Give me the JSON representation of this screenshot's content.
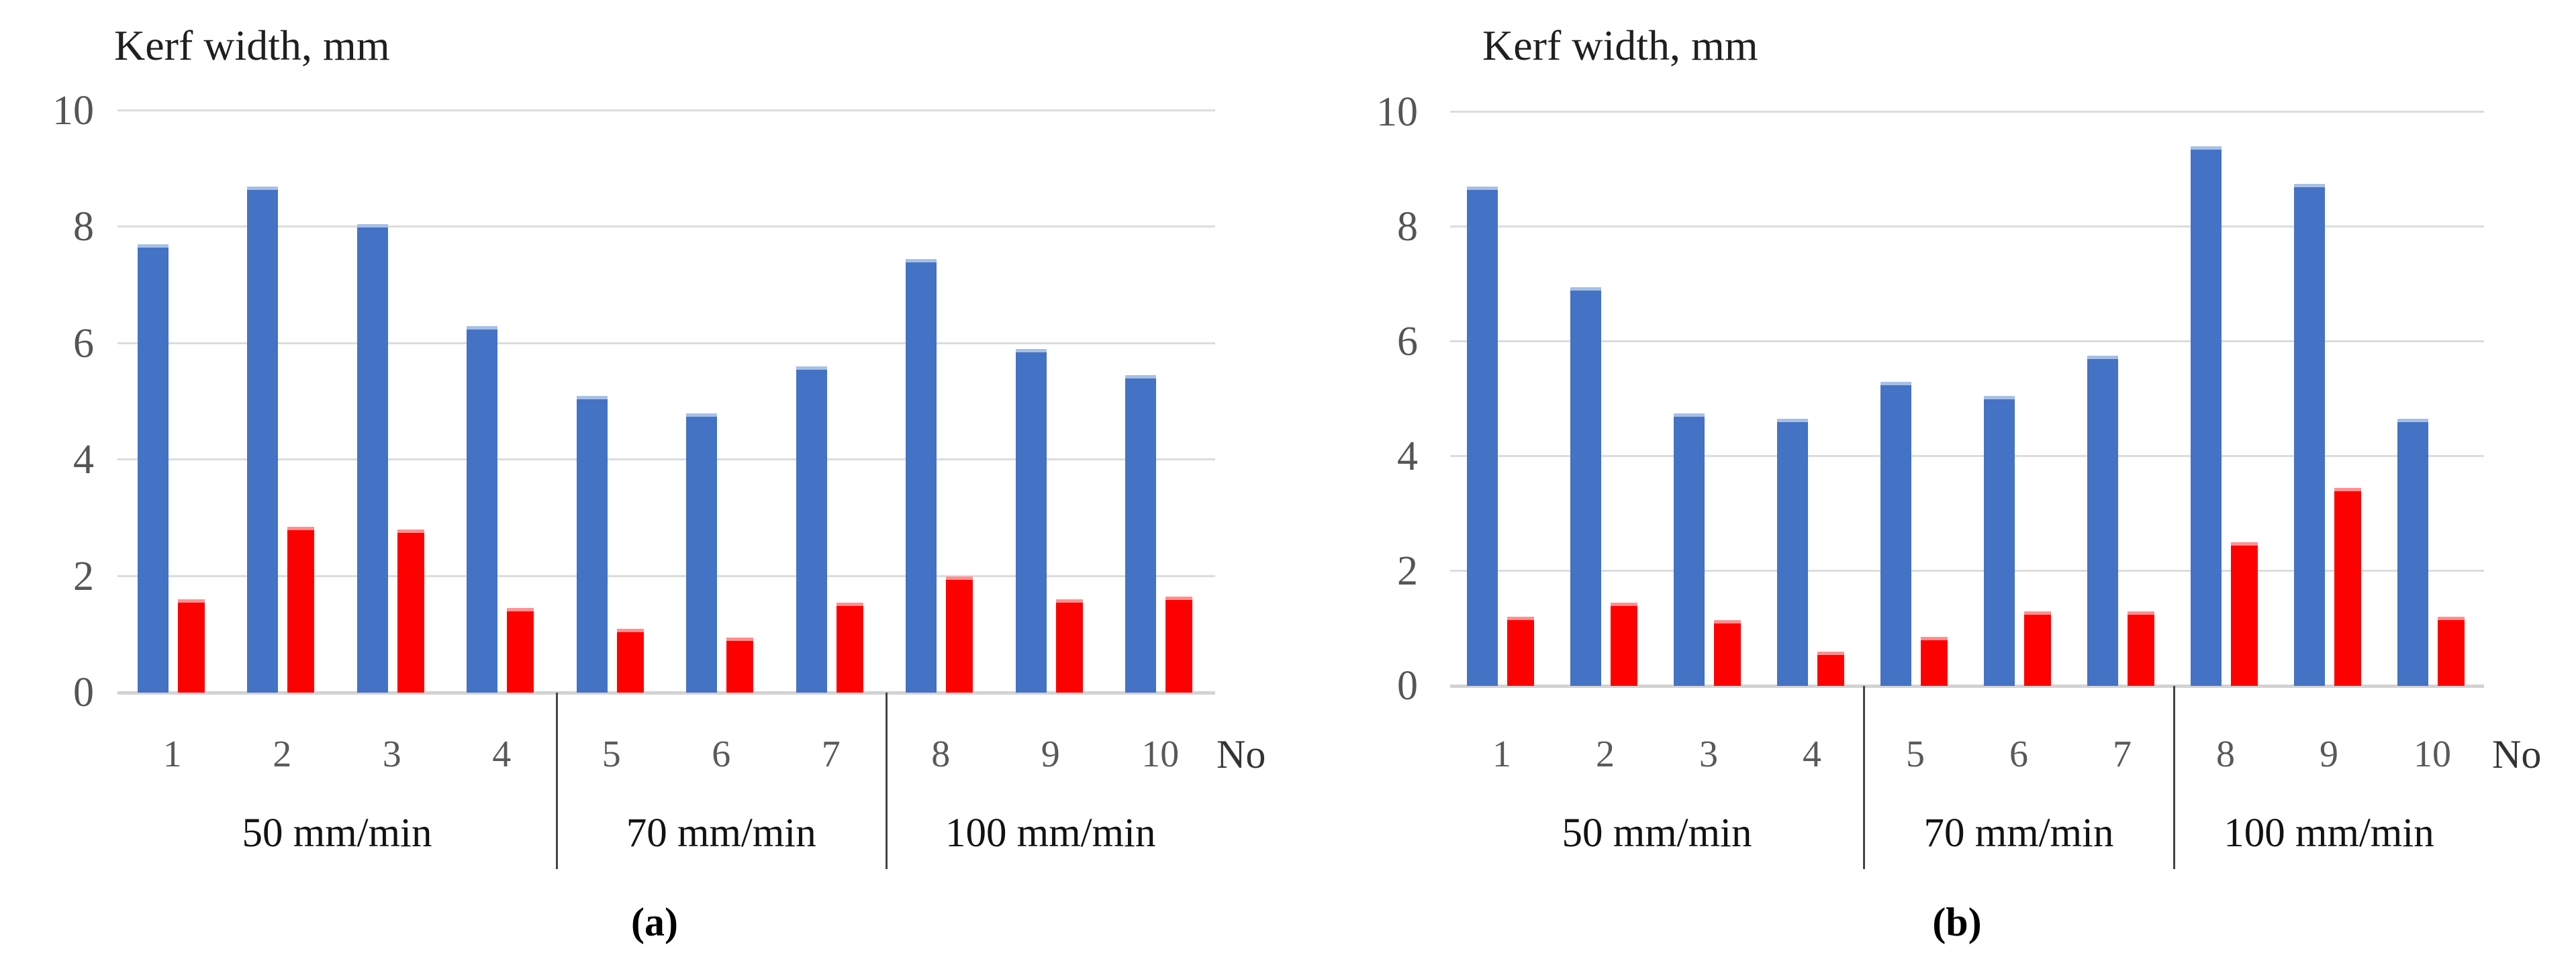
{
  "page": {
    "background": "#ffffff",
    "series_colors": {
      "blue": "#4472C4",
      "red": "#FF0000"
    }
  },
  "chart_data": [
    {
      "type": "bar",
      "panel": "a",
      "caption": "(a)",
      "title": "Kerf width, mm",
      "xlabel": "No",
      "ylabel": "Kerf width, mm",
      "ylim": [
        0,
        10
      ],
      "y_ticks": [
        10,
        8,
        6,
        4,
        2,
        0
      ],
      "grid": true,
      "legend": "none",
      "categories": [
        "1",
        "2",
        "3",
        "4",
        "5",
        "6",
        "7",
        "8",
        "9",
        "10"
      ],
      "groups": [
        {
          "label": "50 mm/min",
          "from": 1,
          "to": 4
        },
        {
          "label": "70 mm/min",
          "from": 5,
          "to": 7
        },
        {
          "label": "100 mm/min",
          "from": 8,
          "to": 10
        }
      ],
      "series": [
        {
          "name": "blue",
          "color": "#4472C4",
          "values": [
            7.7,
            8.7,
            8.05,
            6.3,
            5.1,
            4.8,
            5.6,
            7.45,
            5.9,
            5.45
          ]
        },
        {
          "name": "red",
          "color": "#FF0000",
          "values": [
            1.6,
            2.85,
            2.8,
            1.45,
            1.1,
            0.95,
            1.55,
            2.0,
            1.6,
            1.65
          ]
        }
      ]
    },
    {
      "type": "bar",
      "panel": "b",
      "caption": "(b)",
      "title": "Kerf width, mm",
      "xlabel": "No",
      "ylabel": "Kerf width, mm",
      "ylim": [
        0,
        10
      ],
      "y_ticks": [
        10,
        8,
        6,
        4,
        2,
        0
      ],
      "grid": true,
      "legend": "none",
      "categories": [
        "1",
        "2",
        "3",
        "4",
        "5",
        "6",
        "7",
        "8",
        "9",
        "10"
      ],
      "groups": [
        {
          "label": "50 mm/min",
          "from": 1,
          "to": 4
        },
        {
          "label": "70 mm/min",
          "from": 5,
          "to": 7
        },
        {
          "label": "100 mm/min",
          "from": 8,
          "to": 10
        }
      ],
      "series": [
        {
          "name": "blue",
          "color": "#4472C4",
          "values": [
            8.7,
            6.95,
            4.75,
            4.65,
            5.3,
            5.05,
            5.75,
            9.4,
            8.75,
            4.65
          ]
        },
        {
          "name": "red",
          "color": "#FF0000",
          "values": [
            1.2,
            1.45,
            1.15,
            0.6,
            0.85,
            1.3,
            1.3,
            2.5,
            3.45,
            1.2
          ]
        }
      ]
    }
  ]
}
